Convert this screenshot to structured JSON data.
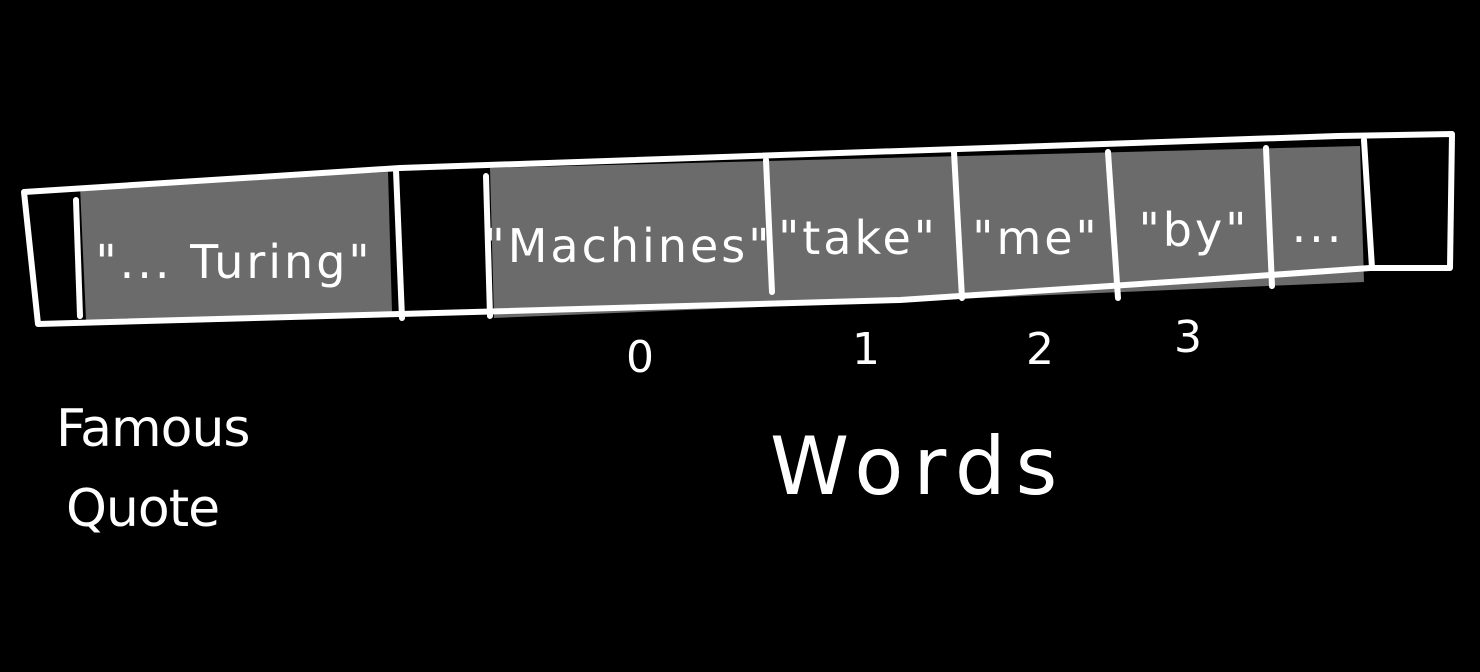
{
  "quote_cell": "\"... Turing\"",
  "word_cells": [
    "\"Machines\"",
    "\"take\"",
    "\"me\"",
    "\"by\"",
    "..."
  ],
  "indices": [
    "0",
    "1",
    "2",
    "3"
  ],
  "side_label": {
    "line1": "Famous",
    "line2": "Quote"
  },
  "words_label": "Words",
  "colors": {
    "background": "#000000",
    "stroke": "#ffffff",
    "cell_fill": "#6b6b6b"
  }
}
